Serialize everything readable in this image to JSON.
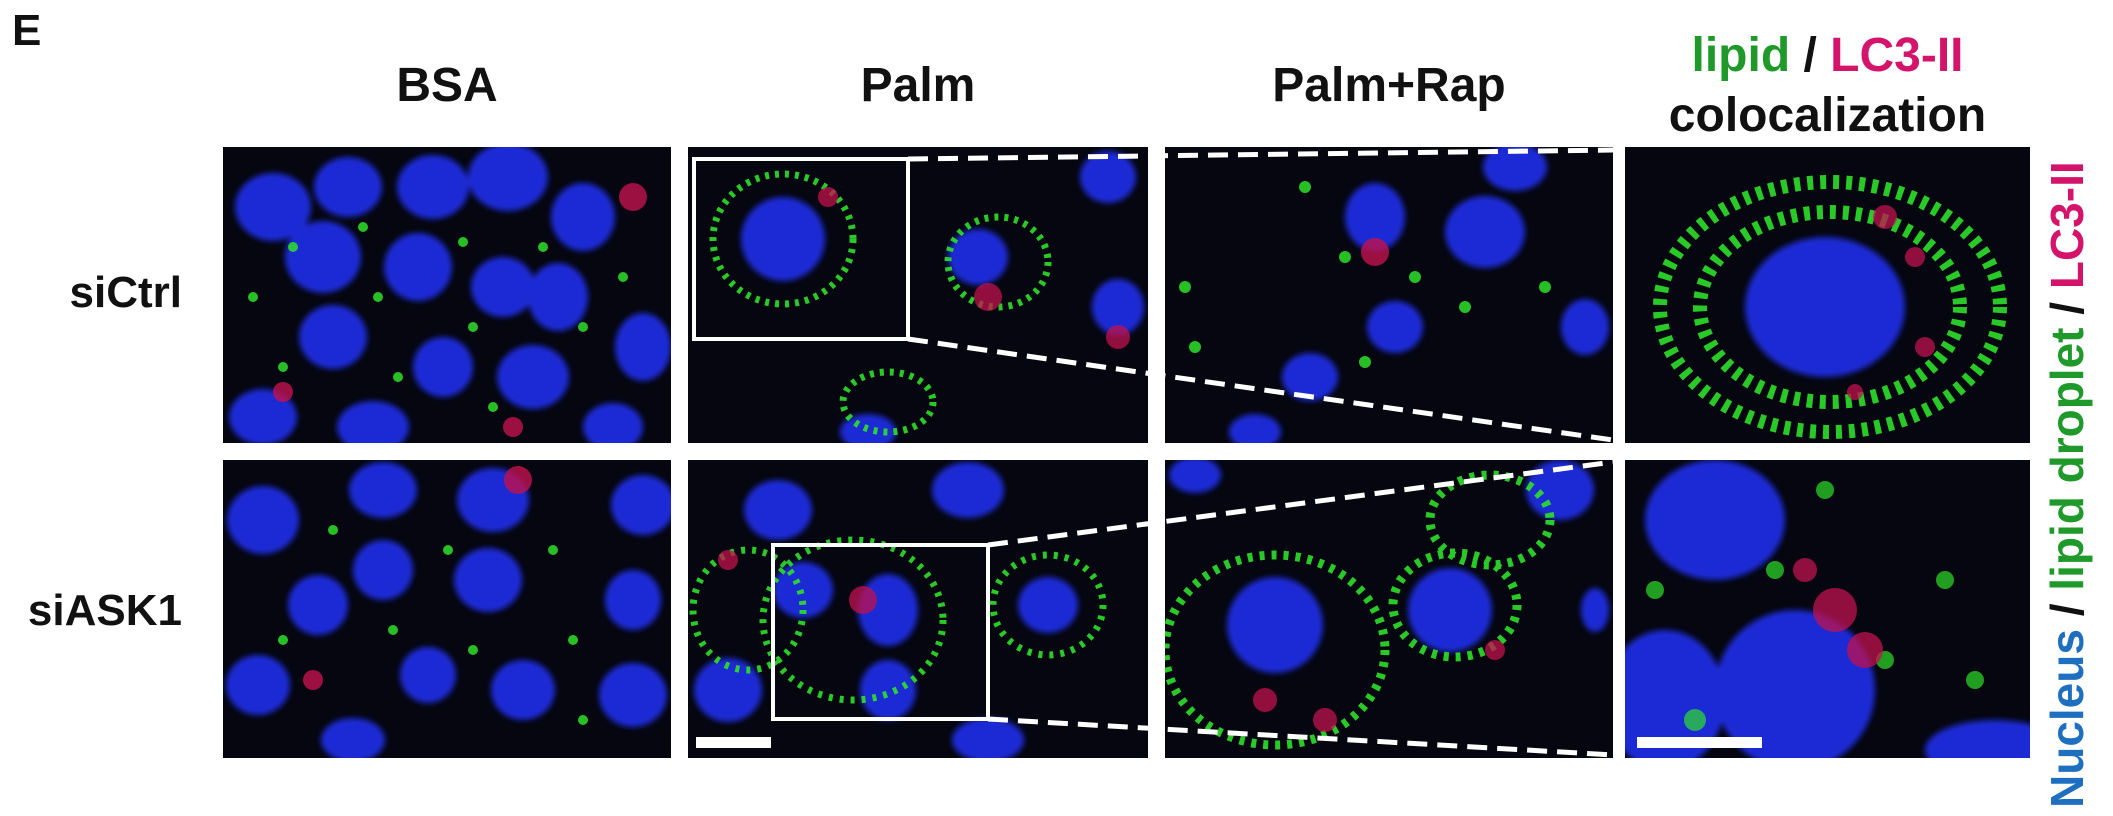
{
  "figure": {
    "panel_letter": "E",
    "columns": [
      {
        "label": "BSA"
      },
      {
        "label": "Palm"
      },
      {
        "label": "Palm+Rap"
      }
    ],
    "colocalization_header": {
      "part_lipid": "lipid",
      "separator": " / ",
      "part_lc3": "LC3-II",
      "line2": "colocalization"
    },
    "rows": [
      {
        "label": "siCtrl"
      },
      {
        "label": "siASK1"
      }
    ],
    "side_legend": {
      "nucleus": "Nucleus",
      "sep1": " / ",
      "lipid_droplet": "lipid droplet",
      "sep2": " / ",
      "lc3": "LC3-II"
    },
    "colors": {
      "lipid_green": "#1f9a2a",
      "lc3_magenta": "#d4136a",
      "nucleus_blue": "#1f6fc0",
      "nucleus_stain": "#1a2bd6",
      "droplet_stain": "#2ee02a",
      "autophagy_stain": "#c0124e",
      "background": "#05060f"
    }
  }
}
